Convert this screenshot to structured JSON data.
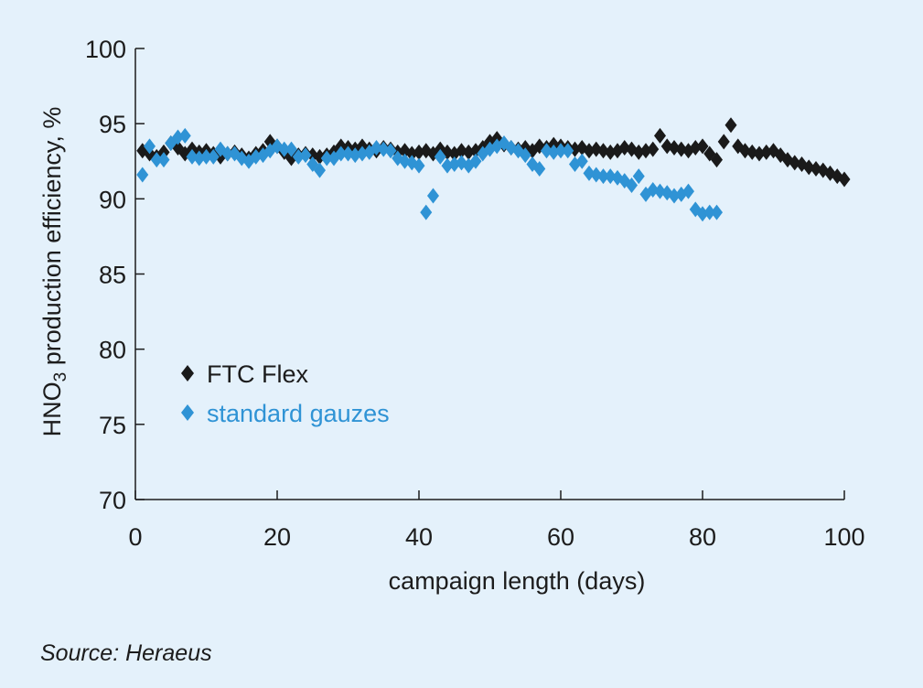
{
  "chart_data": {
    "type": "scatter",
    "xlabel": "campaign length (days)",
    "ylabel": {
      "main": "HNO",
      "sub": "3",
      "rest": " production efficiency, %"
    },
    "xlim": [
      0,
      100
    ],
    "ylim": [
      70,
      100
    ],
    "xticks": [
      0,
      20,
      40,
      60,
      80,
      100
    ],
    "yticks": [
      70,
      75,
      80,
      85,
      90,
      95,
      100
    ],
    "grid": false,
    "legend_position": "lower-left",
    "series": [
      {
        "name": "FTC Flex",
        "color": "#1a1a1a",
        "marker": "diamond",
        "x": [
          1,
          2,
          3,
          4,
          5,
          6,
          7,
          8,
          9,
          10,
          11,
          12,
          13,
          14,
          15,
          16,
          17,
          18,
          19,
          20,
          21,
          22,
          23,
          24,
          25,
          26,
          27,
          28,
          29,
          30,
          31,
          32,
          33,
          34,
          35,
          36,
          37,
          38,
          39,
          40,
          41,
          42,
          43,
          44,
          45,
          46,
          47,
          48,
          49,
          50,
          51,
          52,
          53,
          54,
          55,
          56,
          57,
          58,
          59,
          60,
          61,
          62,
          63,
          64,
          65,
          66,
          67,
          68,
          69,
          70,
          71,
          72,
          73,
          74,
          75,
          76,
          77,
          78,
          79,
          80,
          81,
          82,
          83,
          84,
          85,
          86,
          87,
          88,
          89,
          90,
          91,
          92,
          93,
          94,
          95,
          96,
          97,
          98,
          99,
          100
        ],
        "y": [
          93.2,
          93.0,
          92.8,
          93.1,
          93.7,
          93.4,
          93.0,
          93.3,
          93.1,
          93.2,
          93.0,
          92.8,
          93.0,
          93.1,
          92.9,
          92.7,
          93.0,
          93.2,
          93.8,
          93.5,
          93.1,
          92.7,
          92.9,
          93.0,
          92.9,
          92.8,
          92.9,
          93.1,
          93.5,
          93.4,
          93.3,
          93.5,
          93.3,
          93.2,
          93.4,
          93.3,
          93.1,
          93.2,
          93.0,
          93.1,
          93.2,
          93.0,
          93.3,
          93.1,
          93.0,
          93.2,
          93.1,
          93.2,
          93.4,
          93.8,
          94.0,
          93.6,
          93.4,
          93.3,
          93.4,
          93.2,
          93.5,
          93.4,
          93.6,
          93.5,
          93.4,
          93.3,
          93.4,
          93.2,
          93.3,
          93.2,
          93.1,
          93.2,
          93.4,
          93.3,
          93.1,
          93.2,
          93.3,
          94.2,
          93.5,
          93.4,
          93.3,
          93.2,
          93.4,
          93.5,
          93.0,
          92.6,
          93.8,
          94.9,
          93.5,
          93.2,
          93.1,
          93.0,
          93.1,
          93.2,
          92.9,
          92.6,
          92.4,
          92.3,
          92.1,
          92.0,
          91.9,
          91.7,
          91.5,
          91.3
        ]
      },
      {
        "name": "standard gauzes",
        "color": "#2f93d5",
        "marker": "diamond",
        "x": [
          1,
          2,
          3,
          4,
          5,
          6,
          7,
          8,
          9,
          10,
          11,
          12,
          13,
          14,
          15,
          16,
          17,
          18,
          19,
          20,
          21,
          22,
          23,
          24,
          25,
          26,
          27,
          28,
          29,
          30,
          31,
          32,
          33,
          34,
          35,
          36,
          37,
          38,
          39,
          40,
          41,
          42,
          43,
          44,
          45,
          46,
          47,
          48,
          49,
          50,
          51,
          52,
          53,
          54,
          55,
          56,
          57,
          58,
          59,
          60,
          61,
          62,
          63,
          64,
          65,
          66,
          67,
          68,
          69,
          70,
          71,
          72,
          73,
          74,
          75,
          76,
          77,
          78,
          79,
          80,
          81,
          82
        ],
        "y": [
          91.6,
          93.5,
          92.6,
          92.6,
          93.7,
          94.1,
          94.2,
          92.8,
          92.7,
          92.8,
          92.8,
          93.3,
          93.0,
          93.0,
          92.7,
          92.5,
          92.8,
          92.9,
          93.2,
          93.5,
          93.3,
          93.3,
          92.8,
          92.9,
          92.3,
          91.9,
          92.7,
          92.7,
          93.0,
          93.0,
          92.9,
          93.0,
          93.1,
          93.4,
          93.3,
          93.2,
          92.7,
          92.5,
          92.4,
          92.2,
          89.1,
          90.2,
          92.8,
          92.2,
          92.3,
          92.4,
          92.2,
          92.5,
          93.0,
          93.3,
          93.5,
          93.7,
          93.4,
          93.2,
          92.9,
          92.3,
          92.0,
          93.2,
          93.1,
          93.2,
          93.2,
          92.3,
          92.5,
          91.7,
          91.6,
          91.5,
          91.5,
          91.4,
          91.2,
          90.9,
          91.5,
          90.3,
          90.6,
          90.5,
          90.4,
          90.2,
          90.3,
          90.5,
          89.3,
          89.0,
          89.1,
          89.1
        ]
      }
    ]
  },
  "source": "Source: Heraeus"
}
